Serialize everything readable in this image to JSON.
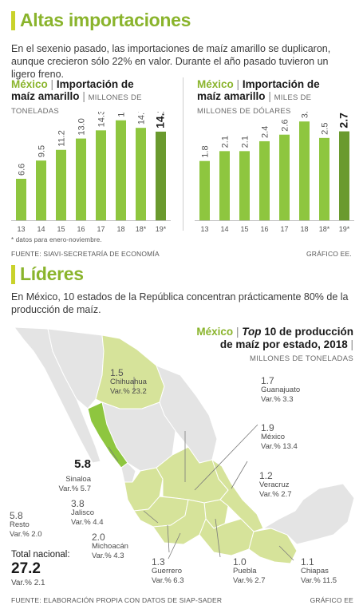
{
  "section1": {
    "title": "Altas importaciones"
  },
  "intro1": "En el sexenio pasado, las importaciones de maíz amarillo se duplicaron, aunque crecieron sólo 22% en valor. Durante el año pasado tuvieron un ligero freno.",
  "chart_data": [
    {
      "type": "bar",
      "country": "México",
      "title_line1": "Importación de",
      "title_line2": "maíz amarillo",
      "unit_line1": "MILLONES DE",
      "unit_line2": "TONELADAS",
      "categories": [
        "13",
        "14",
        "15",
        "16",
        "17",
        "18",
        "18*",
        "19*"
      ],
      "value_labels": [
        "6.6",
        "9.5",
        "11.2",
        "13.0",
        "14.3",
        "15.9",
        "14.7",
        "14.1"
      ],
      "values": [
        6.6,
        9.5,
        11.2,
        13.0,
        14.3,
        15.9,
        14.7,
        14.1
      ],
      "ylim": [
        0,
        16.5
      ],
      "highlight_index": 7
    },
    {
      "type": "bar",
      "country": "México",
      "title_line1": "Importación de",
      "title_line2": "maíz amarillo",
      "unit_line1": "MILES DE",
      "unit_line2": "MILLONES DE DÓLARES",
      "categories": [
        "13",
        "14",
        "15",
        "16",
        "17",
        "18",
        "18*",
        "19*"
      ],
      "value_labels": [
        "1.8",
        "2.1",
        "2.1",
        "2.4",
        "2.6",
        "3.0",
        "2.5",
        "2.7"
      ],
      "values": [
        1.8,
        2.1,
        2.1,
        2.4,
        2.6,
        3.0,
        2.5,
        2.7
      ],
      "ylim": [
        0,
        3.15
      ],
      "highlight_index": 7
    }
  ],
  "footnote": "* datos para enero-noviembre.",
  "source1": "FUENTE: SIAVI-SECRETARÍA DE ECONOMÍA",
  "credit1": "GRÁFICO EE.",
  "section2": {
    "title": "Líderes"
  },
  "intro2": "En México, 10 estados de la República concentran prácticamente 80% de la producción de maíz.",
  "map": {
    "country": "México",
    "title_em": "Top",
    "title_line1": "10 de producción",
    "title_line2": "de maíz por estado, 2018",
    "unit": "MILLONES DE TONELADAS",
    "states": [
      {
        "id": "chihuahua",
        "value": "1.5",
        "name": "Chihuahua",
        "var": "Var.% 23.2"
      },
      {
        "id": "sinaloa",
        "value": "5.8",
        "name": "Sinaloa",
        "var": "Var.% 5.7"
      },
      {
        "id": "guanajuato",
        "value": "1.7",
        "name": "Guanajuato",
        "var": "Var.% 3.3"
      },
      {
        "id": "mexico",
        "value": "1.9",
        "name": "México",
        "var": "Var.% 13.4"
      },
      {
        "id": "veracruz",
        "value": "1.2",
        "name": "Veracruz",
        "var": "Var.% 2.7"
      },
      {
        "id": "jalisco",
        "value": "3.8",
        "name": "Jalisco",
        "var": "Var.% 4.4"
      },
      {
        "id": "michoacan",
        "value": "2.0",
        "name": "Michoacán",
        "var": "Var.% 4.3"
      },
      {
        "id": "guerrero",
        "value": "1.3",
        "name": "Guerrero",
        "var": "Var.% 6.3"
      },
      {
        "id": "puebla",
        "value": "1.0",
        "name": "Puebla",
        "var": "Var.% 2.7"
      },
      {
        "id": "chiapas",
        "value": "1.1",
        "name": "Chiapas",
        "var": "Var.% 11.5"
      }
    ],
    "resto": {
      "value": "5.8",
      "name": "Resto",
      "var": "Var.% 2.0"
    },
    "total": {
      "label": "Total nacional:",
      "value": "27.2",
      "var": "Var.% 2.1"
    }
  },
  "source2": "FUENTE: ELABORACIÓN PROPIA CON DATOS DE SIAP-SADER",
  "credit2": "GRÁFICO EE",
  "colors": {
    "bar_light": "#8ec63f",
    "bar_dark": "#6a9a2e",
    "accent": "#8ab42c",
    "region_fill": "#d6e39a",
    "land_fill": "#e4e4e4"
  }
}
